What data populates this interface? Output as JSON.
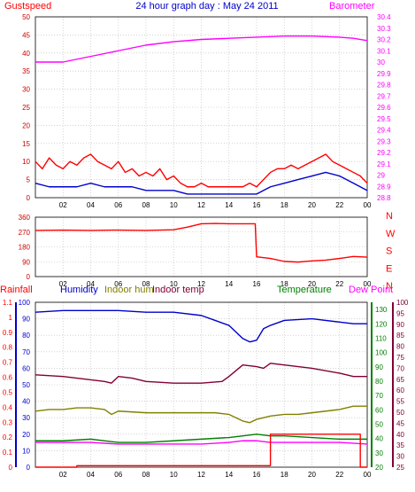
{
  "title": "24 hour graph day : May 24 2011",
  "colors": {
    "grid": "#b8b8b8",
    "axis": "#000000",
    "red": "#ff0000",
    "darkred": "#cc0000",
    "blue": "#0000cc",
    "magenta": "#ff00ff",
    "olive": "#808000",
    "maroon": "#800033",
    "green": "#008000",
    "yellow": "#ffff00"
  },
  "x_ticks": [
    "02",
    "04",
    "06",
    "08",
    "10",
    "12",
    "14",
    "16",
    "18",
    "20",
    "22",
    "00"
  ],
  "chart_data": [
    {
      "type": "line",
      "panel": "wind-speed",
      "left_axis": {
        "label": "Gustspeed",
        "ylim": [
          0,
          50
        ],
        "ticks": [
          "0",
          "5",
          "10",
          "15",
          "20",
          "25",
          "30",
          "35",
          "40",
          "45",
          "50"
        ]
      },
      "right_axis": {
        "label": "Barometer",
        "ylim": [
          28.8,
          30.4
        ],
        "ticks": [
          "28.8",
          "28.9",
          "29",
          "29.1",
          "29.2",
          "29.3",
          "29.4",
          "29.5",
          "29.6",
          "29.7",
          "29.8",
          "29.9",
          "30",
          "30.1",
          "30.2",
          "30.3",
          "30.4"
        ]
      },
      "series": [
        {
          "name": "Gustspeed",
          "axis": "left",
          "color": "#ff0000",
          "x": [
            0,
            0.5,
            1,
            1.5,
            2,
            2.5,
            3,
            3.5,
            4,
            4.5,
            5,
            5.5,
            6,
            6.5,
            7,
            7.5,
            8,
            8.5,
            9,
            9.5,
            10,
            10.5,
            11,
            11.5,
            12,
            12.5,
            13,
            13.5,
            14,
            14.5,
            15,
            15.5,
            16,
            16.5,
            17,
            17.5,
            18,
            18.5,
            19,
            19.5,
            20,
            20.5,
            21,
            21.5,
            22,
            22.5,
            23,
            23.5,
            24
          ],
          "y": [
            10,
            8,
            11,
            9,
            8,
            10,
            9,
            11,
            12,
            10,
            9,
            8,
            10,
            7,
            8,
            6,
            7,
            6,
            8,
            5,
            6,
            4,
            3,
            3,
            4,
            3,
            3,
            3,
            3,
            3,
            3,
            4,
            3,
            5,
            7,
            8,
            8,
            9,
            8,
            9,
            10,
            11,
            12,
            10,
            9,
            8,
            7,
            6,
            4
          ]
        },
        {
          "name": "Windspeed",
          "axis": "left",
          "color": "#0000cc",
          "x": [
            0,
            1,
            2,
            3,
            4,
            5,
            6,
            7,
            8,
            9,
            10,
            11,
            12,
            13,
            14,
            15,
            16,
            17,
            18,
            19,
            20,
            21,
            22,
            23,
            24
          ],
          "y": [
            4,
            3,
            3,
            3,
            4,
            3,
            3,
            3,
            2,
            2,
            2,
            1,
            1,
            1,
            1,
            1,
            1,
            3,
            4,
            5,
            6,
            7,
            6,
            4,
            2
          ]
        },
        {
          "name": "Barometer",
          "axis": "right",
          "color": "#ff00ff",
          "x": [
            0,
            2,
            4,
            6,
            8,
            10,
            12,
            14,
            16,
            18,
            20,
            22,
            23,
            24
          ],
          "y": [
            30.0,
            30.0,
            30.05,
            30.1,
            30.15,
            30.18,
            30.2,
            30.21,
            30.22,
            30.23,
            30.23,
            30.22,
            30.21,
            30.19
          ]
        }
      ]
    },
    {
      "type": "line",
      "panel": "wind-direction",
      "left_axis": {
        "ylim": [
          0,
          360
        ],
        "ticks": [
          "0",
          "90",
          "180",
          "270",
          "360"
        ]
      },
      "right_labels": [
        "N",
        "W",
        "S",
        "E",
        "N"
      ],
      "series": [
        {
          "name": "Direction",
          "color": "#ff0000",
          "x": [
            0,
            2,
            4,
            6,
            8,
            10,
            11,
            12,
            13,
            14,
            15,
            15.9,
            16,
            17,
            18,
            19,
            20,
            21,
            22,
            23,
            24
          ],
          "y": [
            280,
            282,
            280,
            282,
            280,
            284,
            300,
            320,
            322,
            320,
            320,
            320,
            120,
            110,
            92,
            88,
            95,
            100,
            110,
            122,
            118
          ]
        }
      ]
    },
    {
      "type": "line",
      "panel": "temperature-humidity",
      "legend": [
        "Rainfall",
        "Humidity",
        "Indoor hum",
        "Indoor temp",
        "Temperature",
        "Dew Point"
      ],
      "rain_axis": {
        "ylim": [
          0,
          1.1
        ],
        "ticks": [
          "0",
          "0.1",
          "0.2",
          "0.3",
          "0.4",
          "0.5",
          "0.6",
          "0.7",
          "0.8",
          "0.9",
          "1",
          "1.1"
        ]
      },
      "hum_axis": {
        "ylim": [
          0,
          100
        ],
        "ticks": [
          "0",
          "10",
          "20",
          "30",
          "40",
          "50",
          "60",
          "70",
          "80",
          "90",
          "100"
        ]
      },
      "temp_axis": {
        "ylim": [
          20,
          135
        ],
        "ticks": [
          "20",
          "30",
          "40",
          "50",
          "60",
          "70",
          "80",
          "90",
          "100",
          "110",
          "120",
          "130"
        ]
      },
      "dew_axis": {
        "ylim": [
          25,
          100
        ],
        "ticks": [
          "25",
          "30",
          "35",
          "40",
          "45",
          "50",
          "55",
          "60",
          "65",
          "70",
          "75",
          "80",
          "85",
          "90",
          "95",
          "100"
        ]
      },
      "series": [
        {
          "name": "Humidity",
          "axis": "hum",
          "color": "#0000cc",
          "x": [
            0,
            2,
            4,
            6,
            8,
            10,
            12,
            13,
            14,
            15,
            15.5,
            16,
            16.5,
            17,
            18,
            20,
            22,
            23,
            24
          ],
          "y": [
            94,
            95,
            95,
            95,
            94,
            94,
            92,
            89,
            86,
            78,
            76,
            77,
            84,
            86,
            89,
            90,
            88,
            87,
            87
          ]
        },
        {
          "name": "Indoor temp",
          "axis": "hum",
          "color": "#800033",
          "x": [
            0,
            2,
            4,
            5,
            5.5,
            6,
            7,
            8,
            10,
            12,
            13.5,
            14,
            15,
            16,
            16.5,
            17,
            18,
            20,
            22,
            23,
            24
          ],
          "y": [
            56,
            55,
            53,
            52,
            51,
            55,
            54,
            52,
            51,
            51,
            52,
            55,
            62,
            61,
            60,
            63,
            62,
            60,
            57,
            55,
            55
          ]
        },
        {
          "name": "Indoor hum",
          "axis": "hum",
          "color": "#808000",
          "x": [
            0,
            1,
            2,
            3,
            4,
            5,
            5.5,
            6,
            8,
            10,
            12,
            13,
            14,
            15,
            15.5,
            16,
            17,
            18,
            19,
            20,
            22,
            23,
            24
          ],
          "y": [
            34,
            35,
            35,
            36,
            36,
            35,
            32,
            34,
            33,
            33,
            33,
            33,
            32,
            28,
            27,
            29,
            31,
            32,
            32,
            33,
            35,
            37,
            37
          ]
        },
        {
          "name": "Temperature",
          "axis": "hum",
          "color": "#008000",
          "x": [
            0,
            2,
            4,
            6,
            8,
            10,
            12,
            14,
            15,
            16,
            17,
            18,
            20,
            22,
            24
          ],
          "y": [
            16,
            16,
            17,
            15,
            15,
            16,
            17,
            18,
            19,
            20,
            19,
            19,
            18,
            17,
            17
          ]
        },
        {
          "name": "Dew Point",
          "axis": "hum",
          "color": "#ff00ff",
          "x": [
            0,
            2,
            4,
            6,
            8,
            10,
            12,
            14,
            15,
            16,
            17,
            18,
            20,
            22,
            24
          ],
          "y": [
            15,
            15,
            15,
            14,
            14,
            14,
            14,
            15,
            16,
            16,
            15,
            15,
            15,
            15,
            14
          ]
        },
        {
          "name": "Rainfall",
          "axis": "rain",
          "color": "#ff0000",
          "x": [
            0,
            3,
            5,
            16.9,
            17,
            23,
            23.5,
            24
          ],
          "y": [
            0,
            0.01,
            0.01,
            0.01,
            0.22,
            0.22,
            0,
            0
          ]
        }
      ]
    }
  ]
}
